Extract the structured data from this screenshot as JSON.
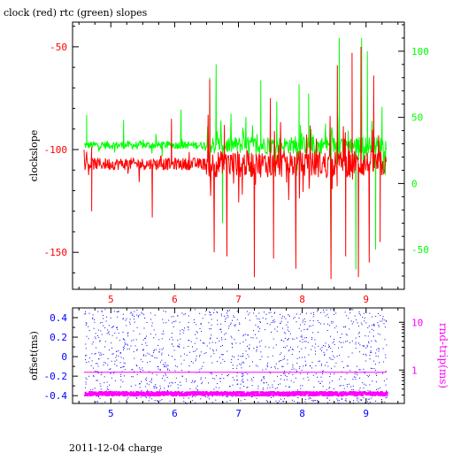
{
  "caption": "2011-12-04 charge",
  "colors": {
    "clock": "#ff0000",
    "rtc": "#00ff00",
    "offset": "#0000ff",
    "roundtrip": "#ff00ff",
    "frame": "#000000"
  },
  "chart_data": [
    {
      "type": "line",
      "title": "clock (red) rtc (green) slopes",
      "ylabel": "clockslope",
      "y2label": "",
      "xlim": [
        4.4,
        9.6
      ],
      "ylim": [
        -168,
        -38
      ],
      "y2lim": [
        -80,
        122
      ],
      "x_ticks": [
        "5",
        "6",
        "7",
        "8",
        "9"
      ],
      "x_tick_values": [
        5,
        6,
        7,
        8,
        9
      ],
      "y_ticks": [
        "-50",
        "-100",
        "-150"
      ],
      "y_tick_values": [
        -50,
        -100,
        -150
      ],
      "y2_ticks": [
        "100",
        "50",
        "0",
        "-50"
      ],
      "y2_tick_values": [
        100,
        50,
        0,
        -50
      ],
      "x_range": [
        4.58,
        9.32
      ],
      "series": [
        {
          "name": "clock",
          "axis": "left",
          "baseline": -107,
          "noise": 3,
          "spikes": [
            {
              "x": 4.7,
              "y": -130
            },
            {
              "x": 5.65,
              "y": -133
            },
            {
              "x": 5.95,
              "y": -85
            },
            {
              "x": 6.55,
              "y": -66
            },
            {
              "x": 6.62,
              "y": -150
            },
            {
              "x": 6.78,
              "y": -88
            },
            {
              "x": 6.82,
              "y": -152
            },
            {
              "x": 7.25,
              "y": -162
            },
            {
              "x": 7.5,
              "y": -75
            },
            {
              "x": 7.55,
              "y": -153
            },
            {
              "x": 7.9,
              "y": -158
            },
            {
              "x": 8.45,
              "y": -163
            },
            {
              "x": 8.55,
              "y": -59
            },
            {
              "x": 8.68,
              "y": -152
            },
            {
              "x": 8.78,
              "y": -53
            },
            {
              "x": 8.88,
              "y": -162
            },
            {
              "x": 8.92,
              "y": -50
            },
            {
              "x": 9.05,
              "y": -155
            },
            {
              "x": 9.12,
              "y": -64
            },
            {
              "x": 9.22,
              "y": -145
            }
          ]
        },
        {
          "name": "rtc",
          "axis": "right",
          "baseline": 29,
          "noise": 3,
          "spikes": [
            {
              "x": 4.62,
              "y": 52
            },
            {
              "x": 5.2,
              "y": 48
            },
            {
              "x": 6.1,
              "y": 56
            },
            {
              "x": 6.55,
              "y": 80
            },
            {
              "x": 6.65,
              "y": 90
            },
            {
              "x": 6.75,
              "y": -30
            },
            {
              "x": 7.35,
              "y": 78
            },
            {
              "x": 7.6,
              "y": 62
            },
            {
              "x": 7.95,
              "y": 75
            },
            {
              "x": 8.1,
              "y": 68
            },
            {
              "x": 8.45,
              "y": -60
            },
            {
              "x": 8.58,
              "y": 110
            },
            {
              "x": 8.72,
              "y": 40
            },
            {
              "x": 8.84,
              "y": -65
            },
            {
              "x": 8.93,
              "y": 110
            },
            {
              "x": 9.02,
              "y": 100
            },
            {
              "x": 9.15,
              "y": -50
            },
            {
              "x": 9.25,
              "y": 58
            }
          ]
        }
      ]
    },
    {
      "type": "scatter",
      "title": "",
      "ylabel": "offset(ms)",
      "y2label": "rnd-trip(ms)",
      "y2_scale": "log",
      "xlim": [
        4.4,
        9.6
      ],
      "ylim": [
        -0.48,
        0.5
      ],
      "y2lim": [
        0.2,
        20
      ],
      "x_ticks": [
        "5",
        "6",
        "7",
        "8",
        "9"
      ],
      "x_tick_values": [
        5,
        6,
        7,
        8,
        9
      ],
      "y_ticks": [
        "0.4",
        "0.2",
        "0",
        "-0.2",
        "-0.4"
      ],
      "y_tick_values": [
        0.4,
        0.2,
        0,
        -0.2,
        -0.4
      ],
      "y2_ticks": [
        "10",
        "1"
      ],
      "y2_tick_values": [
        10,
        1
      ],
      "x_range": [
        4.58,
        9.32
      ],
      "series": [
        {
          "name": "offset",
          "axis": "left",
          "distribution": "uniform",
          "y_range": [
            -0.48,
            0.49
          ],
          "count": 1400
        },
        {
          "name": "roundtrip",
          "axis": "right",
          "baseline": 0.32,
          "jitter": 0.03,
          "reference_line": 0.9
        }
      ]
    }
  ]
}
